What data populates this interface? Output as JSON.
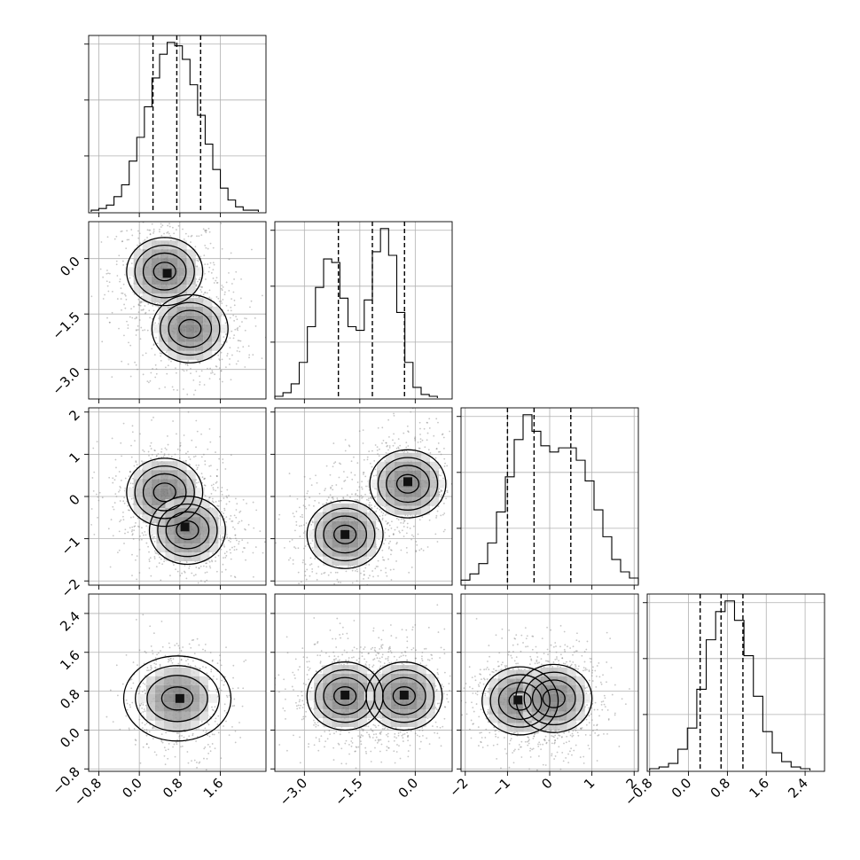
{
  "chart_data": {
    "type": "corner",
    "grid": true,
    "parameters": [
      {
        "range": [
          -1.0,
          2.5
        ],
        "ticks": [
          -0.8,
          0.0,
          0.8,
          1.6
        ],
        "tick_labels": [
          "−0.8",
          "0.0",
          "0.8",
          "1.6"
        ]
      },
      {
        "range": [
          -3.8,
          1.0
        ],
        "ticks": [
          -3.0,
          -1.5,
          0.0
        ],
        "tick_labels": [
          "−3.0",
          "−1.5",
          "0.0"
        ]
      },
      {
        "range": [
          -2.1,
          2.1
        ],
        "ticks": [
          -2,
          -1,
          0,
          1,
          2
        ],
        "tick_labels": [
          "−2",
          "−1",
          "0",
          "1",
          "2"
        ]
      },
      {
        "range": [
          -0.85,
          2.8
        ],
        "ticks": [
          -0.8,
          0.0,
          0.8,
          1.6,
          2.4
        ],
        "tick_labels": [
          "−0.8",
          "0.0",
          "0.8",
          "1.6",
          "2.4"
        ]
      }
    ],
    "histograms": [
      {
        "param": 0,
        "bins": [
          -0.95,
          2.35
        ],
        "counts": [
          1,
          2,
          4,
          9,
          16,
          30,
          44,
          62,
          79,
          93,
          100,
          98,
          90,
          75,
          57,
          40,
          25,
          14,
          7,
          3,
          1,
          1
        ],
        "quantiles": [
          0.27,
          0.74,
          1.21
        ]
      },
      {
        "param": 1,
        "bins": [
          -3.8,
          0.6
        ],
        "counts": [
          1,
          3,
          8,
          20,
          40,
          62,
          78,
          76,
          56,
          40,
          38,
          55,
          82,
          95,
          80,
          48,
          20,
          6,
          2,
          1
        ],
        "quantiles": [
          -2.08,
          -1.16,
          -0.29
        ]
      },
      {
        "param": 2,
        "bins": [
          -2.1,
          2.1
        ],
        "counts": [
          2,
          5,
          10,
          20,
          35,
          52,
          70,
          82,
          74,
          67,
          64,
          66,
          66,
          60,
          50,
          36,
          23,
          12,
          6,
          3
        ],
        "quantiles": [
          -1.0,
          -0.37,
          0.5
        ]
      },
      {
        "param": 3,
        "bins": [
          -0.8,
          2.5
        ],
        "counts": [
          1,
          2,
          4,
          12,
          24,
          46,
          74,
          90,
          96,
          85,
          65,
          42,
          22,
          10,
          5,
          2,
          1
        ],
        "quantiles": [
          0.24,
          0.67,
          1.12
        ]
      }
    ],
    "pairs": [
      {
        "x_param": 0,
        "y_param": 1,
        "modes": [
          [
            0.5,
            -0.35
          ],
          [
            1.0,
            -1.9
          ]
        ],
        "peak_points": [
          [
            0.55,
            -0.4
          ]
        ]
      },
      {
        "x_param": 0,
        "y_param": 2,
        "modes": [
          [
            0.5,
            0.1
          ],
          [
            0.95,
            -0.8
          ]
        ],
        "peak_points": [
          [
            0.9,
            -0.72
          ]
        ]
      },
      {
        "x_param": 1,
        "y_param": 2,
        "modes": [
          [
            -1.9,
            -0.9
          ],
          [
            -0.2,
            0.3
          ]
        ],
        "peak_points": [
          [
            -1.9,
            -0.9
          ],
          [
            -0.2,
            0.35
          ]
        ]
      },
      {
        "x_param": 0,
        "y_param": 3,
        "modes": [
          [
            0.75,
            0.65
          ]
        ],
        "peak_points": [
          [
            0.8,
            0.65
          ]
        ]
      },
      {
        "x_param": 1,
        "y_param": 3,
        "modes": [
          [
            -1.9,
            0.7
          ],
          [
            -0.3,
            0.7
          ]
        ],
        "peak_points": [
          [
            -1.9,
            0.72
          ],
          [
            -0.3,
            0.72
          ]
        ]
      },
      {
        "x_param": 2,
        "y_param": 3,
        "modes": [
          [
            -0.7,
            0.6
          ],
          [
            0.1,
            0.65
          ]
        ],
        "peak_points": [
          [
            -0.75,
            0.62
          ]
        ]
      }
    ]
  }
}
